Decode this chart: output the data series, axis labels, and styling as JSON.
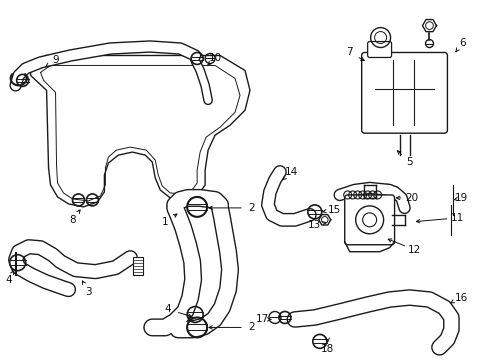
{
  "bg_color": "#ffffff",
  "line_color": "#1a1a1a",
  "text_color": "#111111",
  "figsize": [
    4.9,
    3.6
  ],
  "dpi": 100,
  "xlim": [
    0,
    490
  ],
  "ylim": [
    0,
    360
  ]
}
